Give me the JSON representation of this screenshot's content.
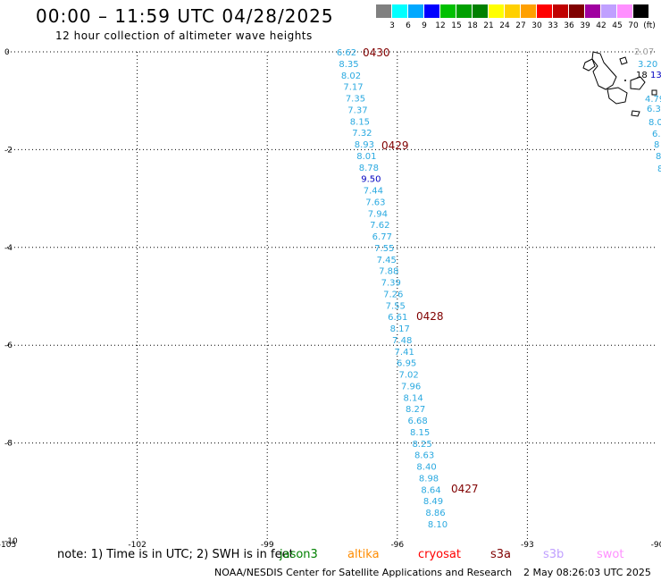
{
  "header": {
    "title": "00:00 – 11:59 UTC 04/28/2025",
    "subtitle": "12 hour collection of altimeter wave heights"
  },
  "legend": {
    "labels": [
      "3",
      "6",
      "9",
      "12",
      "15",
      "18",
      "21",
      "24",
      "27",
      "30",
      "33",
      "36",
      "39",
      "42",
      "45",
      "70"
    ],
    "colors": [
      "#808080",
      "#00ffff",
      "#00a8ff",
      "#0000ff",
      "#00c000",
      "#00a000",
      "#008000",
      "#ffff00",
      "#ffd000",
      "#ffa000",
      "#ff0000",
      "#c00000",
      "#800000",
      "#a000a0",
      "#c0a0ff",
      "#ff90ff",
      "#000000"
    ],
    "unit": "(ft)"
  },
  "map": {
    "lon_ticks": [
      "-105",
      "-102",
      "-99",
      "-96",
      "-93",
      "-90"
    ],
    "lat_ticks": [
      "0",
      "-2",
      "-4",
      "-6",
      "-8",
      "-10"
    ],
    "track": {
      "color": "#2aa9e0",
      "highlight_color": "#0000c0",
      "values": [
        "6.62",
        "8.35",
        "8.02",
        "7.17",
        "7.35",
        "7.37",
        "8.15",
        "7.32",
        "8.93",
        "8.01",
        "8.78",
        "9.50",
        "7.44",
        "7.63",
        "7.94",
        "7.62",
        "6.77",
        "7.55",
        "7.45",
        "7.88",
        "7.39",
        "7.26",
        "7.55",
        "6.61",
        "8.17",
        "7.48",
        "7.41",
        "6.95",
        "7.02",
        "7.96",
        "8.14",
        "8.27",
        "6.68",
        "8.15",
        "8.25",
        "8.63",
        "8.40",
        "8.98",
        "8.64",
        "8.49",
        "8.86",
        "8.10"
      ],
      "highlight_index": 11
    },
    "day_labels": [
      "0430",
      "0429",
      "0428",
      "0427"
    ],
    "day_label_color": "#800000",
    "east_values": [
      {
        "v": "2.07",
        "c": "#a0a0a0"
      },
      {
        "v": "3.20",
        "c": "#2aa9e0"
      },
      {
        "v": "13",
        "c": "#0000c0"
      },
      {
        "v": "18",
        "c": "#000000"
      },
      {
        "v": "4.79",
        "c": "#2aa9e0"
      },
      {
        "v": "6.3",
        "c": "#2aa9e0"
      },
      {
        "v": "8.0",
        "c": "#2aa9e0"
      },
      {
        "v": "6.",
        "c": "#2aa9e0"
      },
      {
        "v": "8",
        "c": "#2aa9e0"
      },
      {
        "v": "8",
        "c": "#2aa9e0"
      },
      {
        "v": "8",
        "c": "#2aa9e0"
      }
    ]
  },
  "note": {
    "text": "note:  1) Time is in UTC; 2) SWH is in feet"
  },
  "satellites": [
    {
      "name": "jason3",
      "color": "#008000"
    },
    {
      "name": "altika",
      "color": "#ff8c00"
    },
    {
      "name": "cryosat",
      "color": "#ff0000"
    },
    {
      "name": "s3a",
      "color": "#800000"
    },
    {
      "name": "s3b",
      "color": "#c0a0ff"
    },
    {
      "name": "swot",
      "color": "#ff90ff"
    }
  ],
  "footer": {
    "credit": "NOAA/NESDIS Center for Satellite Applications and Research",
    "timestamp": "2 May 08:26:03 UTC 2025"
  }
}
